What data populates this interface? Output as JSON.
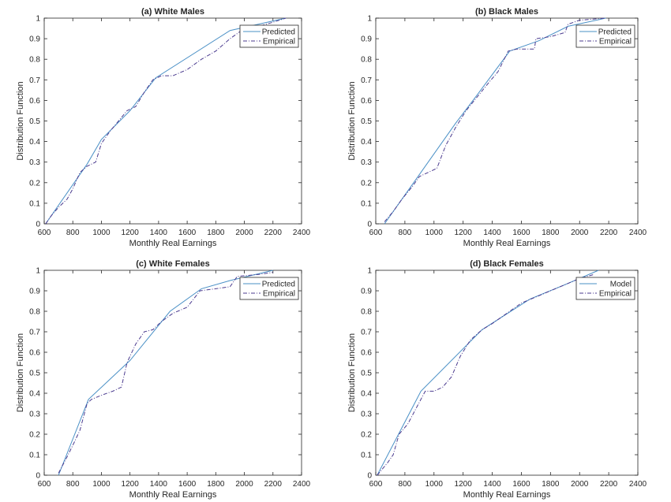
{
  "chart_data": [
    {
      "type": "line",
      "title": "(a) White Males",
      "xlabel": "Monthly Real Earnings",
      "ylabel": "Distribution Function",
      "xlim": [
        600,
        2400
      ],
      "ylim": [
        0,
        1
      ],
      "xticks": [
        "600",
        "800",
        "1000",
        "1200",
        "1400",
        "1600",
        "1800",
        "2000",
        "2200",
        "2400"
      ],
      "yticks": [
        "0",
        "0.1",
        "0.2",
        "0.3",
        "0.4",
        "0.5",
        "0.6",
        "0.7",
        "0.8",
        "0.9",
        "1"
      ],
      "legend": "top-right",
      "grid": false,
      "series": [
        {
          "name": "Predicted",
          "color": "#4a90c6",
          "style": "solid",
          "points": [
            [
              610,
              0
            ],
            [
              900,
              0.29
            ],
            [
              1000,
              0.41
            ],
            [
              1200,
              0.55
            ],
            [
              1380,
              0.71
            ],
            [
              1900,
              0.94
            ],
            [
              2290,
              1.0
            ]
          ]
        },
        {
          "name": "Empirical",
          "color": "#4b3b8f",
          "style": "dashdot",
          "points": [
            [
              610,
              0.0
            ],
            [
              650,
              0.04
            ],
            [
              700,
              0.08
            ],
            [
              760,
              0.12
            ],
            [
              800,
              0.17
            ],
            [
              850,
              0.25
            ],
            [
              900,
              0.28
            ],
            [
              960,
              0.3
            ],
            [
              1000,
              0.39
            ],
            [
              1060,
              0.45
            ],
            [
              1120,
              0.5
            ],
            [
              1180,
              0.55
            ],
            [
              1240,
              0.57
            ],
            [
              1300,
              0.64
            ],
            [
              1360,
              0.7
            ],
            [
              1420,
              0.72
            ],
            [
              1500,
              0.72
            ],
            [
              1600,
              0.75
            ],
            [
              1700,
              0.8
            ],
            [
              1800,
              0.84
            ],
            [
              1900,
              0.9
            ],
            [
              2000,
              0.95
            ],
            [
              2100,
              0.96
            ],
            [
              2200,
              0.98
            ],
            [
              2290,
              1.0
            ]
          ]
        }
      ]
    },
    {
      "type": "line",
      "title": "(b) Black Males",
      "xlabel": "Monthly Real Earnings",
      "ylabel": "Distribution Function",
      "xlim": [
        600,
        2400
      ],
      "ylim": [
        0,
        1
      ],
      "xticks": [
        "600",
        "800",
        "1000",
        "1200",
        "1400",
        "1600",
        "1800",
        "2000",
        "2200",
        "2400"
      ],
      "yticks": [
        "0",
        "0.1",
        "0.2",
        "0.3",
        "0.4",
        "0.5",
        "0.6",
        "0.7",
        "0.8",
        "0.9",
        "1"
      ],
      "legend": "top-right",
      "grid": false,
      "series": [
        {
          "name": "Predicted",
          "color": "#4a90c6",
          "style": "solid",
          "points": [
            [
              660,
              0
            ],
            [
              900,
              0.24
            ],
            [
              1150,
              0.49
            ],
            [
              1300,
              0.63
            ],
            [
              1520,
              0.84
            ],
            [
              1720,
              0.89
            ],
            [
              1920,
              0.96
            ],
            [
              2180,
              1.0
            ]
          ]
        },
        {
          "name": "Empirical",
          "color": "#4b3b8f",
          "style": "dashdot",
          "points": [
            [
              660,
              0.01
            ],
            [
              720,
              0.06
            ],
            [
              780,
              0.12
            ],
            [
              850,
              0.18
            ],
            [
              900,
              0.23
            ],
            [
              960,
              0.25
            ],
            [
              1020,
              0.27
            ],
            [
              1080,
              0.38
            ],
            [
              1150,
              0.47
            ],
            [
              1220,
              0.55
            ],
            [
              1300,
              0.62
            ],
            [
              1380,
              0.69
            ],
            [
              1440,
              0.74
            ],
            [
              1510,
              0.84
            ],
            [
              1570,
              0.85
            ],
            [
              1690,
              0.85
            ],
            [
              1700,
              0.9
            ],
            [
              1800,
              0.91
            ],
            [
              1900,
              0.93
            ],
            [
              1920,
              0.97
            ],
            [
              2000,
              0.99
            ],
            [
              2180,
              1.0
            ]
          ]
        }
      ]
    },
    {
      "type": "line",
      "title": "(c) White Females",
      "xlabel": "Monthly Real Earnings",
      "ylabel": "Distribution Function",
      "xlim": [
        600,
        2400
      ],
      "ylim": [
        0,
        1
      ],
      "xticks": [
        "600",
        "800",
        "1000",
        "1200",
        "1400",
        "1600",
        "1800",
        "2000",
        "2200",
        "2400"
      ],
      "yticks": [
        "0",
        "0.1",
        "0.2",
        "0.3",
        "0.4",
        "0.5",
        "0.6",
        "0.7",
        "0.8",
        "0.9",
        "1"
      ],
      "legend": "top-right",
      "grid": false,
      "series": [
        {
          "name": "Predicted",
          "color": "#4a90c6",
          "style": "solid",
          "points": [
            [
              700,
              0
            ],
            [
              910,
              0.37
            ],
            [
              1200,
              0.56
            ],
            [
              1480,
              0.8
            ],
            [
              1700,
              0.91
            ],
            [
              1900,
              0.95
            ],
            [
              2200,
              1.0
            ]
          ]
        },
        {
          "name": "Empirical",
          "color": "#4b3b8f",
          "style": "dashdot",
          "points": [
            [
              700,
              0.01
            ],
            [
              760,
              0.09
            ],
            [
              810,
              0.16
            ],
            [
              850,
              0.22
            ],
            [
              900,
              0.35
            ],
            [
              930,
              0.37
            ],
            [
              1000,
              0.39
            ],
            [
              1080,
              0.41
            ],
            [
              1140,
              0.43
            ],
            [
              1180,
              0.55
            ],
            [
              1240,
              0.64
            ],
            [
              1300,
              0.7
            ],
            [
              1360,
              0.71
            ],
            [
              1420,
              0.75
            ],
            [
              1500,
              0.79
            ],
            [
              1600,
              0.82
            ],
            [
              1690,
              0.9
            ],
            [
              1800,
              0.91
            ],
            [
              1900,
              0.92
            ],
            [
              1950,
              0.97
            ],
            [
              2100,
              0.98
            ],
            [
              2200,
              0.99
            ]
          ]
        }
      ]
    },
    {
      "type": "line",
      "title": "(d) Black Females",
      "xlabel": "Monthly Real Earnings",
      "ylabel": "Distribution Function",
      "xlim": [
        600,
        2400
      ],
      "ylim": [
        0,
        1
      ],
      "xticks": [
        "600",
        "800",
        "1000",
        "1200",
        "1400",
        "1600",
        "1800",
        "2000",
        "2200",
        "2400"
      ],
      "yticks": [
        "0",
        "0.1",
        "0.2",
        "0.3",
        "0.4",
        "0.5",
        "0.6",
        "0.7",
        "0.8",
        "0.9",
        "1"
      ],
      "legend": "top-right",
      "grid": false,
      "series": [
        {
          "name": "Model",
          "color": "#4a90c6",
          "style": "solid",
          "points": [
            [
              610,
              0
            ],
            [
              910,
              0.41
            ],
            [
              1330,
              0.71
            ],
            [
              1660,
              0.86
            ],
            [
              1900,
              0.93
            ],
            [
              2130,
              1.0
            ]
          ]
        },
        {
          "name": "Empirical",
          "color": "#4b3b8f",
          "style": "dashdot",
          "points": [
            [
              610,
              0.0
            ],
            [
              680,
              0.06
            ],
            [
              720,
              0.1
            ],
            [
              760,
              0.2
            ],
            [
              820,
              0.25
            ],
            [
              880,
              0.33
            ],
            [
              940,
              0.41
            ],
            [
              1000,
              0.41
            ],
            [
              1060,
              0.43
            ],
            [
              1120,
              0.48
            ],
            [
              1180,
              0.58
            ],
            [
              1250,
              0.66
            ],
            [
              1330,
              0.71
            ],
            [
              1400,
              0.74
            ],
            [
              1500,
              0.79
            ],
            [
              1600,
              0.84
            ],
            [
              1700,
              0.87
            ],
            [
              1800,
              0.9
            ],
            [
              1900,
              0.93
            ],
            [
              2000,
              0.96
            ],
            [
              2100,
              0.98
            ]
          ]
        }
      ]
    }
  ]
}
